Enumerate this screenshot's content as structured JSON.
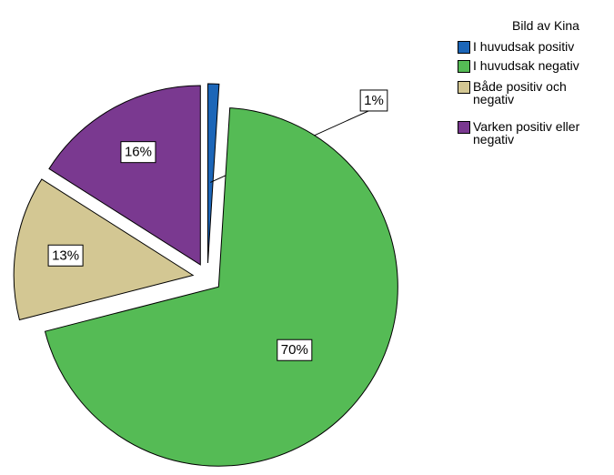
{
  "chart_data": {
    "type": "pie",
    "legend_title": "Bild av Kina",
    "categories": [
      "I huvudsak positiv",
      "I huvudsak negativ",
      "Både positiv och negativ",
      "Varken positiv eller negativ"
    ],
    "values": [
      1,
      70,
      13,
      16
    ],
    "value_labels": [
      "1%",
      "70%",
      "13%",
      "16%"
    ],
    "colors": [
      "#1c66b8",
      "#55bb55",
      "#d3c793",
      "#7a3990"
    ],
    "legend": "upper right"
  }
}
